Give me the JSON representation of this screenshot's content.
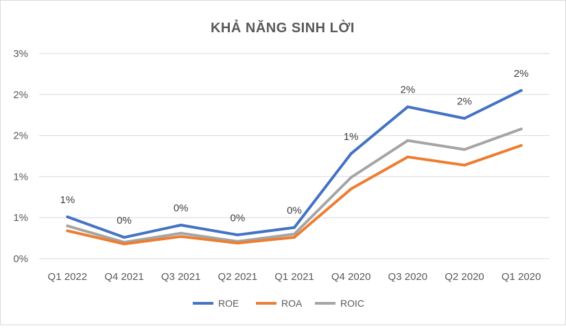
{
  "chart_data": {
    "type": "line",
    "title": "KHẢ NĂNG SINH LỜI",
    "xlabel": "",
    "ylabel": "",
    "categories": [
      "Q1 2022",
      "Q4 2021",
      "Q3 2021",
      "Q2 2021",
      "Q1 2021",
      "Q4 2020",
      "Q3 2020",
      "Q2 2020",
      "Q1 2020"
    ],
    "yticks": [
      "0%",
      "1%",
      "1%",
      "2%",
      "2%",
      "3%"
    ],
    "ylim": [
      0,
      2.5
    ],
    "grid": true,
    "legend_position": "bottom",
    "series": [
      {
        "name": "ROE",
        "color": "#4472c4",
        "values": [
          0.51,
          0.26,
          0.41,
          0.29,
          0.38,
          1.28,
          1.85,
          1.71,
          2.05
        ],
        "labels": [
          "1%",
          "0%",
          "0%",
          "0%",
          "0%",
          "1%",
          "2%",
          "2%",
          "2%"
        ]
      },
      {
        "name": "ROA",
        "color": "#ed7d31",
        "values": [
          0.34,
          0.18,
          0.27,
          0.19,
          0.26,
          0.85,
          1.24,
          1.14,
          1.38
        ]
      },
      {
        "name": "ROIC",
        "color": "#a5a5a5",
        "values": [
          0.4,
          0.2,
          0.31,
          0.21,
          0.3,
          0.99,
          1.44,
          1.33,
          1.58
        ]
      }
    ]
  }
}
